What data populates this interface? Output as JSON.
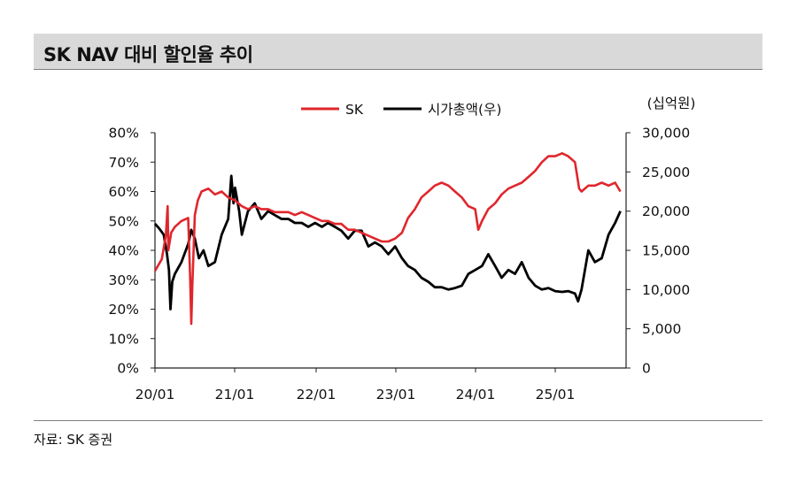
{
  "title": "SK NAV 대비 할인율 추이",
  "source": "자료: SK 증권",
  "chart_data": {
    "type": "line",
    "right_unit": "(십억원)",
    "legend_position": "top-center",
    "grid": false,
    "x_ticks": [
      "20/01",
      "21/01",
      "22/01",
      "23/01",
      "24/01",
      "25/01"
    ],
    "y_left": {
      "ticks": [
        "0%",
        "10%",
        "20%",
        "30%",
        "40%",
        "50%",
        "60%",
        "70%",
        "80%"
      ],
      "ylim": [
        0,
        80
      ],
      "unit": "%"
    },
    "y_right": {
      "ticks": [
        "0",
        "5,000",
        "10,000",
        "15,000",
        "20,000",
        "25,000",
        "30,000"
      ],
      "ylim": [
        0,
        30000
      ]
    },
    "series": [
      {
        "name": "SK",
        "axis": "left",
        "color": "#e0262d",
        "points": [
          [
            "2020-01-01",
            33
          ],
          [
            "2020-02-01",
            37
          ],
          [
            "2020-02-20",
            45
          ],
          [
            "2020-02-28",
            55
          ],
          [
            "2020-03-02",
            40
          ],
          [
            "2020-03-15",
            46
          ],
          [
            "2020-04-01",
            48
          ],
          [
            "2020-05-01",
            50
          ],
          [
            "2020-06-01",
            51
          ],
          [
            "2020-06-10",
            30
          ],
          [
            "2020-06-15",
            15
          ],
          [
            "2020-06-20",
            28
          ],
          [
            "2020-07-01",
            52
          ],
          [
            "2020-07-15",
            57
          ],
          [
            "2020-08-01",
            60
          ],
          [
            "2020-09-01",
            61
          ],
          [
            "2020-10-01",
            59
          ],
          [
            "2020-11-01",
            60
          ],
          [
            "2020-12-01",
            58
          ],
          [
            "2021-01-01",
            57
          ],
          [
            "2021-02-01",
            55
          ],
          [
            "2021-03-01",
            54
          ],
          [
            "2021-04-01",
            55
          ],
          [
            "2021-05-01",
            54
          ],
          [
            "2021-06-01",
            54
          ],
          [
            "2021-07-01",
            53
          ],
          [
            "2021-08-01",
            53
          ],
          [
            "2021-09-01",
            53
          ],
          [
            "2021-10-01",
            52
          ],
          [
            "2021-11-01",
            53
          ],
          [
            "2021-12-01",
            52
          ],
          [
            "2022-01-01",
            51
          ],
          [
            "2022-02-01",
            50
          ],
          [
            "2022-03-01",
            50
          ],
          [
            "2022-04-01",
            49
          ],
          [
            "2022-05-01",
            49
          ],
          [
            "2022-06-01",
            47
          ],
          [
            "2022-07-01",
            47
          ],
          [
            "2022-08-01",
            46
          ],
          [
            "2022-09-01",
            45
          ],
          [
            "2022-10-01",
            44
          ],
          [
            "2022-11-01",
            43
          ],
          [
            "2022-12-01",
            43
          ],
          [
            "2023-01-01",
            44
          ],
          [
            "2023-02-01",
            46
          ],
          [
            "2023-03-01",
            51
          ],
          [
            "2023-04-01",
            54
          ],
          [
            "2023-05-01",
            58
          ],
          [
            "2023-06-01",
            60
          ],
          [
            "2023-07-01",
            62
          ],
          [
            "2023-08-01",
            63
          ],
          [
            "2023-09-01",
            62
          ],
          [
            "2023-10-01",
            60
          ],
          [
            "2023-11-01",
            58
          ],
          [
            "2023-12-01",
            55
          ],
          [
            "2024-01-01",
            54
          ],
          [
            "2024-01-15",
            47
          ],
          [
            "2024-02-01",
            50
          ],
          [
            "2024-03-01",
            54
          ],
          [
            "2024-04-01",
            56
          ],
          [
            "2024-05-01",
            59
          ],
          [
            "2024-06-01",
            61
          ],
          [
            "2024-07-01",
            62
          ],
          [
            "2024-08-01",
            63
          ],
          [
            "2024-09-01",
            65
          ],
          [
            "2024-10-01",
            67
          ],
          [
            "2024-11-01",
            70
          ],
          [
            "2024-12-01",
            72
          ],
          [
            "2025-01-01",
            72
          ],
          [
            "2025-02-01",
            73
          ],
          [
            "2025-03-01",
            72
          ],
          [
            "2025-04-01",
            70
          ],
          [
            "2025-04-20",
            61
          ],
          [
            "2025-05-01",
            60
          ],
          [
            "2025-06-01",
            62
          ],
          [
            "2025-07-01",
            62
          ],
          [
            "2025-08-01",
            63
          ],
          [
            "2025-09-01",
            62
          ],
          [
            "2025-10-01",
            63
          ],
          [
            "2025-10-25",
            60
          ]
        ]
      },
      {
        "name": "시가총액(우)",
        "axis": "right",
        "color": "#000000",
        "points": [
          [
            "2020-01-01",
            18400
          ],
          [
            "2020-01-20",
            17800
          ],
          [
            "2020-02-10",
            17000
          ],
          [
            "2020-02-25",
            14500
          ],
          [
            "2020-03-05",
            12500
          ],
          [
            "2020-03-12",
            7500
          ],
          [
            "2020-03-20",
            11000
          ],
          [
            "2020-04-01",
            12000
          ],
          [
            "2020-05-01",
            13500
          ],
          [
            "2020-06-01",
            15800
          ],
          [
            "2020-06-15",
            17600
          ],
          [
            "2020-07-01",
            16500
          ],
          [
            "2020-07-20",
            14000
          ],
          [
            "2020-08-10",
            15000
          ],
          [
            "2020-09-01",
            13000
          ],
          [
            "2020-10-01",
            13500
          ],
          [
            "2020-11-01",
            17000
          ],
          [
            "2020-12-01",
            19000
          ],
          [
            "2020-12-15",
            24500
          ],
          [
            "2020-12-25",
            21000
          ],
          [
            "2021-01-01",
            23000
          ],
          [
            "2021-01-20",
            20000
          ],
          [
            "2021-02-01",
            17000
          ],
          [
            "2021-03-01",
            20000
          ],
          [
            "2021-04-01",
            21000
          ],
          [
            "2021-05-01",
            19000
          ],
          [
            "2021-06-01",
            20000
          ],
          [
            "2021-07-01",
            19500
          ],
          [
            "2021-08-01",
            19000
          ],
          [
            "2021-09-01",
            19000
          ],
          [
            "2021-10-01",
            18500
          ],
          [
            "2021-11-01",
            18500
          ],
          [
            "2021-12-01",
            18000
          ],
          [
            "2022-01-01",
            18500
          ],
          [
            "2022-02-01",
            18000
          ],
          [
            "2022-03-01",
            18500
          ],
          [
            "2022-04-01",
            18000
          ],
          [
            "2022-05-01",
            17500
          ],
          [
            "2022-06-01",
            16500
          ],
          [
            "2022-07-01",
            17500
          ],
          [
            "2022-08-01",
            17500
          ],
          [
            "2022-09-01",
            15500
          ],
          [
            "2022-10-01",
            16000
          ],
          [
            "2022-11-01",
            15500
          ],
          [
            "2022-12-01",
            14500
          ],
          [
            "2023-01-01",
            15500
          ],
          [
            "2023-02-01",
            14000
          ],
          [
            "2023-03-01",
            13000
          ],
          [
            "2023-04-01",
            12500
          ],
          [
            "2023-05-01",
            11500
          ],
          [
            "2023-06-01",
            11000
          ],
          [
            "2023-07-01",
            10300
          ],
          [
            "2023-08-01",
            10300
          ],
          [
            "2023-09-01",
            10000
          ],
          [
            "2023-10-01",
            10200
          ],
          [
            "2023-11-01",
            10500
          ],
          [
            "2023-12-01",
            12000
          ],
          [
            "2024-01-01",
            12500
          ],
          [
            "2024-02-01",
            13000
          ],
          [
            "2024-03-01",
            14500
          ],
          [
            "2024-04-01",
            13000
          ],
          [
            "2024-05-01",
            11500
          ],
          [
            "2024-06-01",
            12500
          ],
          [
            "2024-07-01",
            12000
          ],
          [
            "2024-08-01",
            13500
          ],
          [
            "2024-09-01",
            11500
          ],
          [
            "2024-10-01",
            10500
          ],
          [
            "2024-11-01",
            10000
          ],
          [
            "2024-12-01",
            10200
          ],
          [
            "2025-01-01",
            9800
          ],
          [
            "2025-02-01",
            9700
          ],
          [
            "2025-03-01",
            9800
          ],
          [
            "2025-04-01",
            9500
          ],
          [
            "2025-04-15",
            8500
          ],
          [
            "2025-05-01",
            10000
          ],
          [
            "2025-06-01",
            15000
          ],
          [
            "2025-07-01",
            13500
          ],
          [
            "2025-08-01",
            14000
          ],
          [
            "2025-09-01",
            17000
          ],
          [
            "2025-10-01",
            18500
          ],
          [
            "2025-10-25",
            20000
          ]
        ]
      }
    ]
  }
}
